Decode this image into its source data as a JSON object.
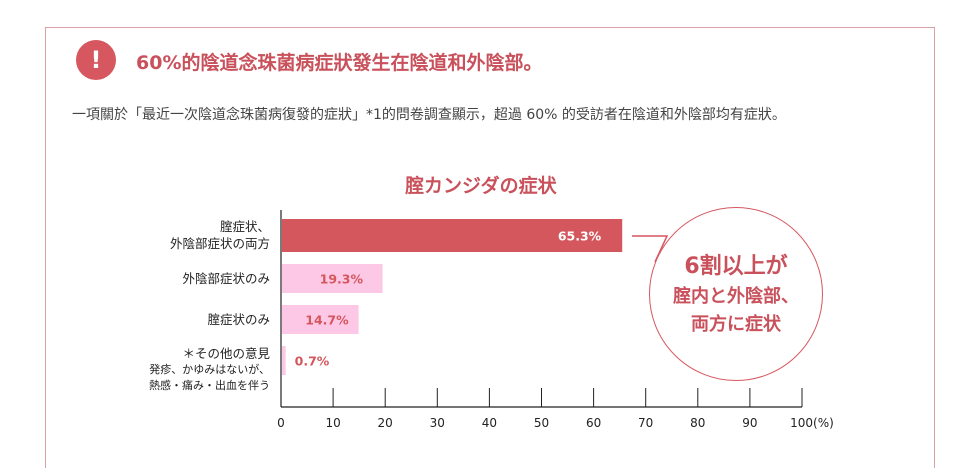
{
  "header": {
    "alert_icon": "!",
    "title": "60%的陰道念珠菌病症狀發生在陰道和外陰部。",
    "description": "一項關於「最近一次陰道念珠菌病復發的症狀」*1的問卷調查顯示，超過 60% 的受訪者在陰道和外陰部均有症狀。"
  },
  "chart_data": {
    "type": "bar",
    "orientation": "horizontal",
    "title": "腟カンジダの症状",
    "categories": [
      "腟症状、\n外陰部症状の両方",
      "外陰部症状のみ",
      "腟症状のみ",
      "＊その他の意見"
    ],
    "category_notes": [
      "",
      "",
      "",
      "発疹、かゆみはないが、\n熱感・痛み・出血を伴う"
    ],
    "values": [
      65.3,
      19.3,
      14.7,
      0.7
    ],
    "value_labels": [
      "65.3%",
      "19.3%",
      "14.7%",
      "0.7%"
    ],
    "colors": [
      "#d4575e",
      "#fdc8e6",
      "#fdc8e6",
      "#fdc8e6"
    ],
    "xlim": [
      0,
      100
    ],
    "xticks": [
      0,
      10,
      20,
      30,
      40,
      50,
      60,
      70,
      80,
      90,
      100
    ],
    "xtick_labels": [
      "0",
      "10",
      "20",
      "30",
      "40",
      "50",
      "60",
      "70",
      "80",
      "90",
      "100(%)"
    ]
  },
  "callout": {
    "line1": "6割以上が",
    "line2": "腟内と外陰部、",
    "line3": "両方に症状"
  }
}
